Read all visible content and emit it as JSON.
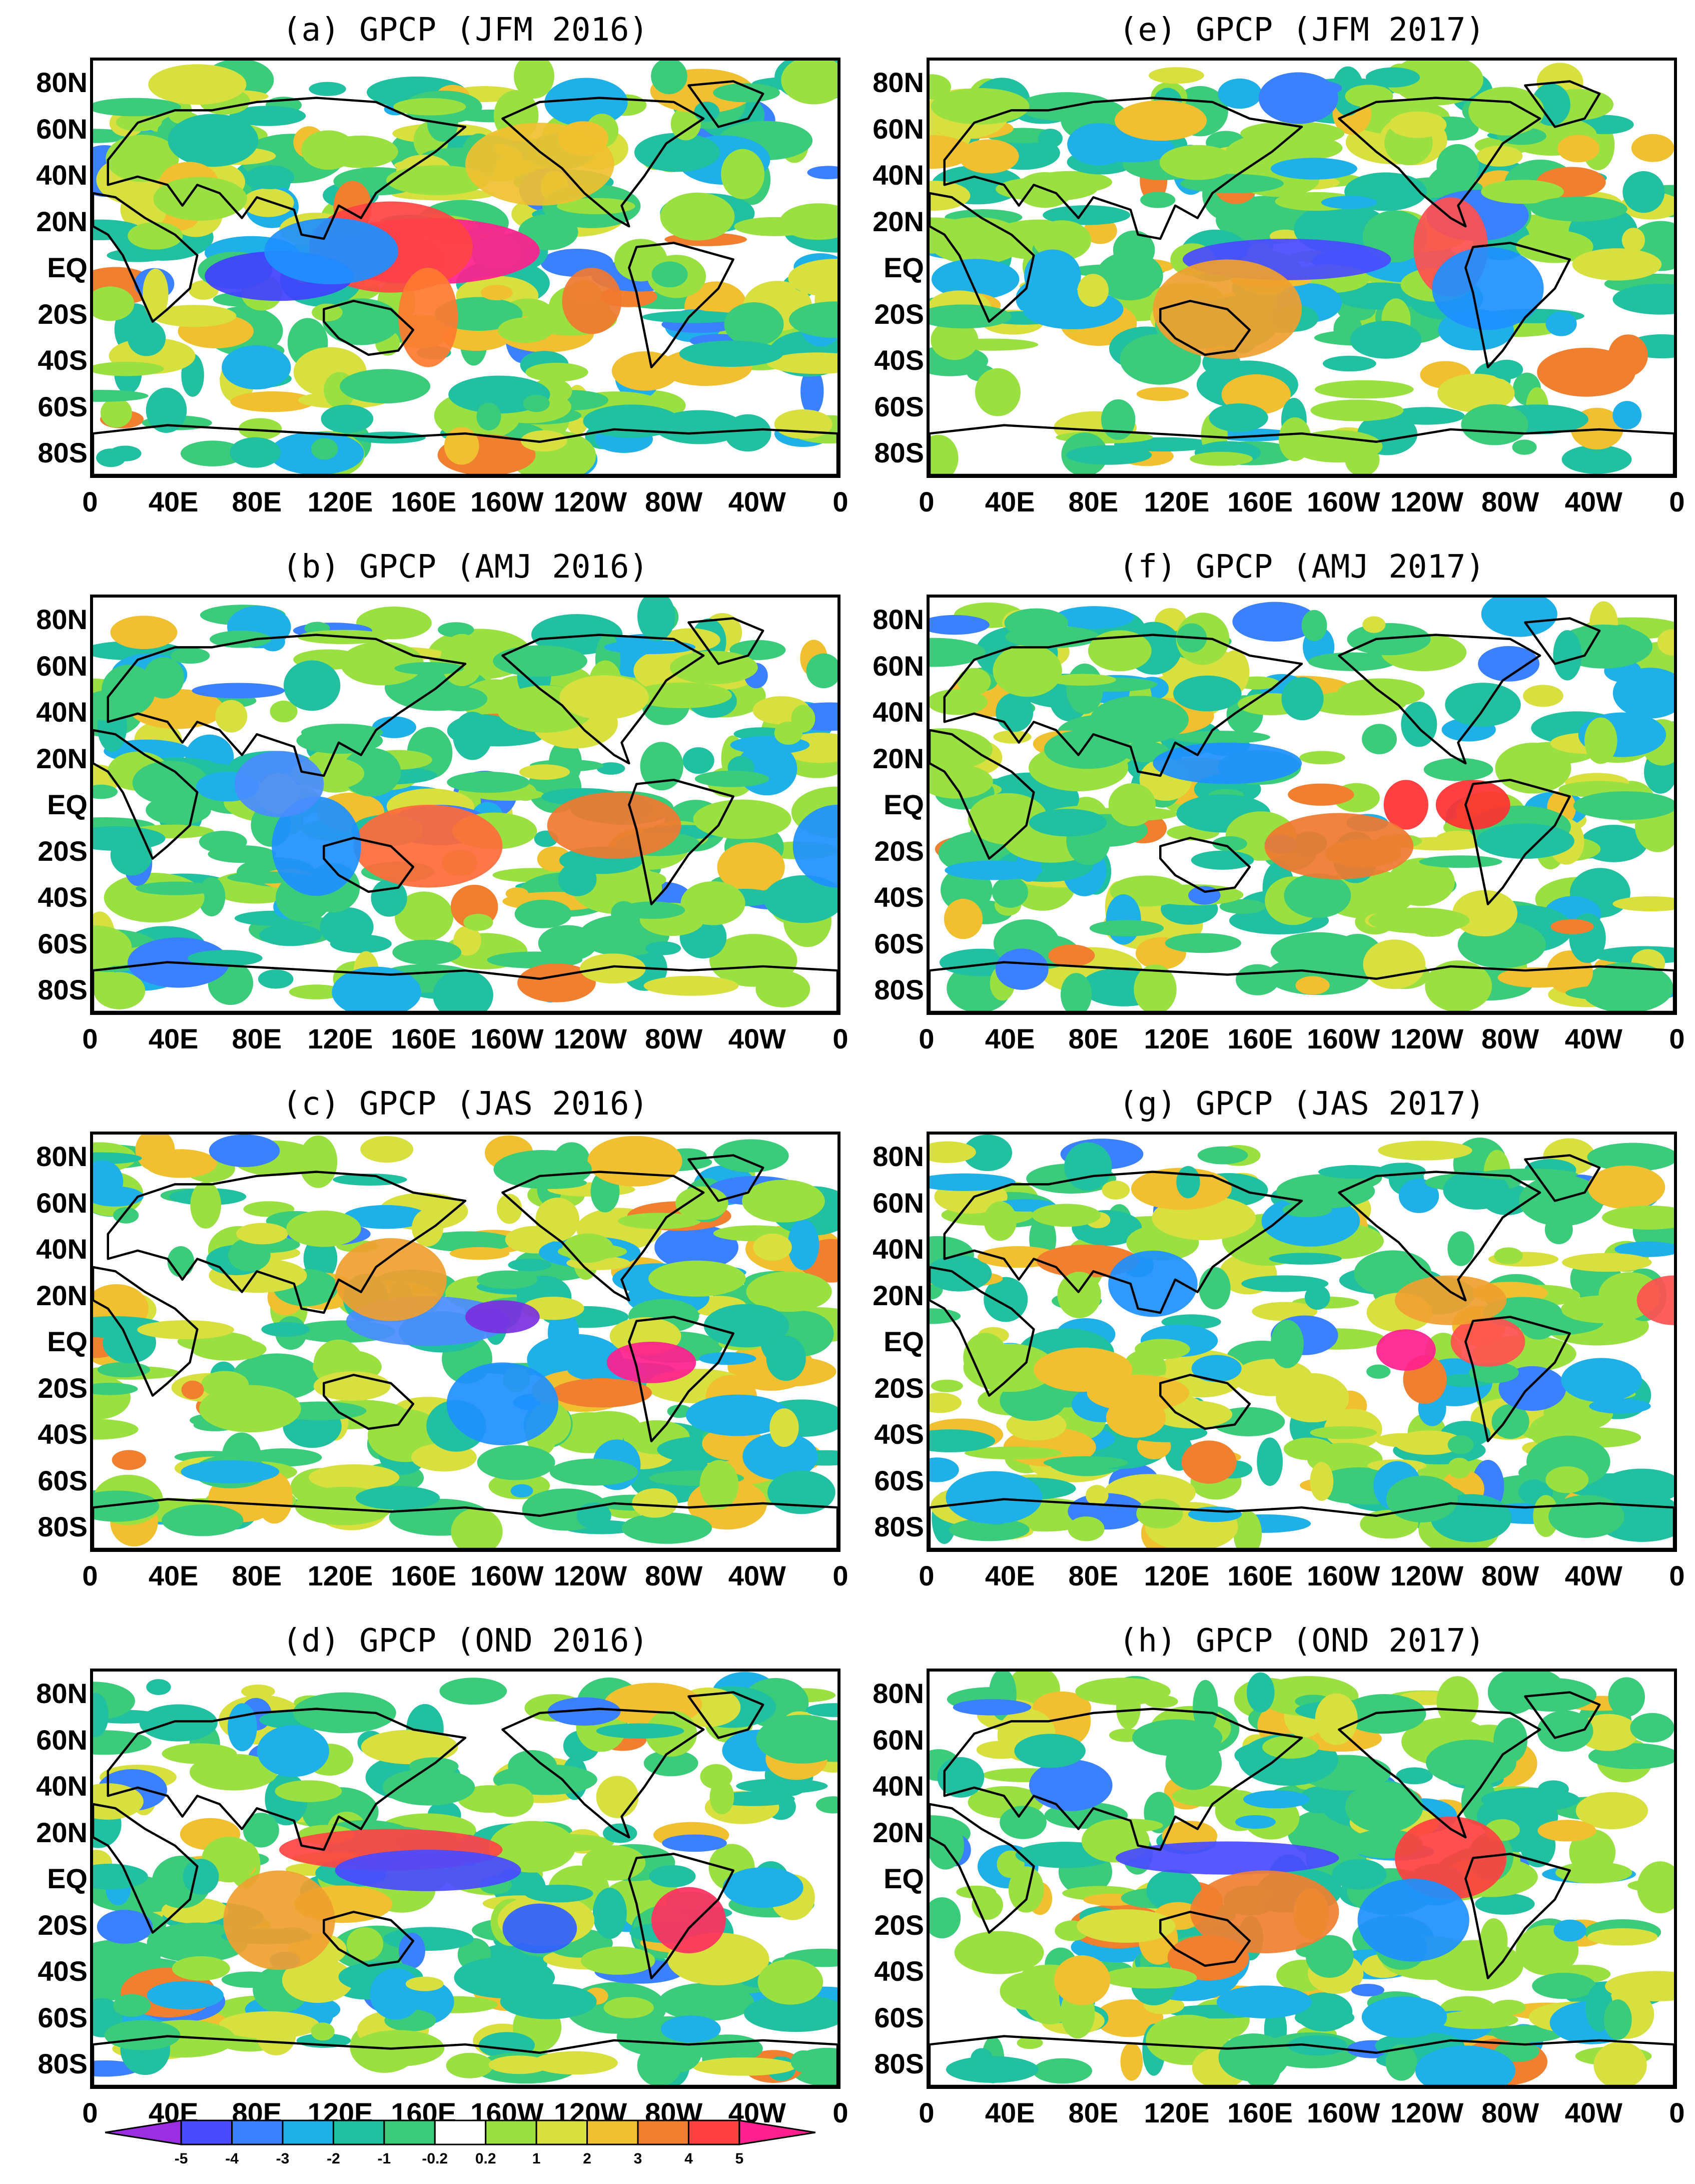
{
  "panels": [
    {
      "title": "(a) GPCP (JFM 2016)",
      "col": 0,
      "row": 0,
      "centers": [
        [
          -0.05,
          0.46,
          0.3,
          0.08,
          "#ff1f8e"
        ],
        [
          -0.1,
          0.45,
          0.22,
          0.11,
          "#ff4444"
        ],
        [
          -0.25,
          0.52,
          0.2,
          0.06,
          "#4040ff"
        ],
        [
          -0.18,
          0.46,
          0.18,
          0.08,
          "#1e90ff"
        ],
        [
          0.17,
          0.58,
          0.08,
          0.08,
          "#f07830"
        ],
        [
          -0.05,
          0.62,
          0.08,
          0.12,
          "#ff7a30"
        ],
        [
          0.1,
          0.25,
          0.2,
          0.1,
          "#f0c030"
        ]
      ]
    },
    {
      "title": "(b) GPCP (AMJ 2016)",
      "col": 0,
      "row": 1,
      "centers": [
        [
          0.2,
          0.55,
          0.18,
          0.08,
          "#f07830"
        ],
        [
          -0.05,
          0.6,
          0.2,
          0.1,
          "#ff6a3a"
        ],
        [
          -0.2,
          0.6,
          0.12,
          0.12,
          "#1e90ff"
        ],
        [
          0.5,
          0.6,
          0.12,
          0.1,
          "#1e90ff"
        ],
        [
          -0.25,
          0.45,
          0.12,
          0.08,
          "#4a8cff"
        ]
      ]
    },
    {
      "title": "(c) GPCP (JAS 2016)",
      "col": 0,
      "row": 2,
      "centers": [
        [
          0.25,
          0.55,
          0.12,
          0.05,
          "#ff1f8e"
        ],
        [
          -0.05,
          0.45,
          0.22,
          0.06,
          "#4a8cff"
        ],
        [
          0.05,
          0.44,
          0.1,
          0.04,
          "#7a30e0"
        ],
        [
          -0.1,
          0.35,
          0.15,
          0.1,
          "#f0a030"
        ],
        [
          0.05,
          0.65,
          0.15,
          0.1,
          "#1e90ff"
        ]
      ]
    },
    {
      "title": "(d) GPCP (OND 2016)",
      "col": 0,
      "row": 3,
      "centers": [
        [
          -0.1,
          0.43,
          0.3,
          0.05,
          "#ff4444"
        ],
        [
          -0.05,
          0.48,
          0.25,
          0.05,
          "#4a4aff"
        ],
        [
          0.3,
          0.6,
          0.1,
          0.08,
          "#ff3060"
        ],
        [
          0.1,
          0.62,
          0.1,
          0.06,
          "#3060ff"
        ],
        [
          -0.25,
          0.6,
          0.15,
          0.12,
          "#f0a030"
        ]
      ]
    },
    {
      "title": "(e) GPCP (JFM 2017)",
      "col": 1,
      "row": 0,
      "centers": [
        [
          -0.02,
          0.48,
          0.28,
          0.05,
          "#4a4aff"
        ],
        [
          0.2,
          0.45,
          0.1,
          0.12,
          "#ff5050"
        ],
        [
          -0.1,
          0.6,
          0.2,
          0.12,
          "#f0a030"
        ],
        [
          0.25,
          0.55,
          0.15,
          0.1,
          "#1e90ff"
        ]
      ]
    },
    {
      "title": "(f) GPCP (AMJ 2017)",
      "col": 1,
      "row": 1,
      "centers": [
        [
          0.23,
          0.5,
          0.1,
          0.06,
          "#ff3030"
        ],
        [
          0.14,
          0.5,
          0.06,
          0.06,
          "#ff3030"
        ],
        [
          -0.1,
          0.4,
          0.2,
          0.05,
          "#1e90ff"
        ],
        [
          0.05,
          0.6,
          0.2,
          0.08,
          "#f07830"
        ]
      ]
    },
    {
      "title": "(g) GPCP (JAS 2017)",
      "col": 1,
      "row": 2,
      "centers": [
        [
          0.14,
          0.52,
          0.08,
          0.05,
          "#ff1f8e"
        ],
        [
          0.25,
          0.5,
          0.1,
          0.06,
          "#ff5050"
        ],
        [
          -0.2,
          0.36,
          0.12,
          0.08,
          "#1e90ff"
        ],
        [
          0.5,
          0.4,
          0.1,
          0.06,
          "#ff5050"
        ],
        [
          0.2,
          0.4,
          0.15,
          0.06,
          "#f0a030"
        ]
      ]
    },
    {
      "title": "(h) GPCP (OND 2017)",
      "col": 1,
      "row": 3,
      "centers": [
        [
          -0.1,
          0.45,
          0.3,
          0.04,
          "#4a4aff"
        ],
        [
          0.2,
          0.45,
          0.15,
          0.1,
          "#ff4040"
        ],
        [
          -0.05,
          0.58,
          0.2,
          0.1,
          "#f08030"
        ],
        [
          0.15,
          0.6,
          0.15,
          0.1,
          "#1e90ff"
        ]
      ]
    }
  ],
  "lat_ticks": [
    "80N",
    "60N",
    "40N",
    "20N",
    "EQ",
    "20S",
    "40S",
    "60S",
    "80S"
  ],
  "lon_ticks": [
    "0",
    "40E",
    "80E",
    "120E",
    "160E",
    "160W",
    "120W",
    "80W",
    "40W",
    "0"
  ],
  "colorbar": {
    "labels": [
      "-5",
      "-4",
      "-3",
      "-2",
      "-1",
      "-0.2",
      "0.2",
      "1",
      "2",
      "3",
      "4",
      "5"
    ],
    "colors": [
      "#9a2ee0",
      "#4a4aff",
      "#3a80ff",
      "#1fb0e8",
      "#20c0a0",
      "#3acc7a",
      "#ffffff",
      "#99e040",
      "#d8e040",
      "#f0c030",
      "#f08030",
      "#ff4040",
      "#ff1f8e"
    ]
  }
}
